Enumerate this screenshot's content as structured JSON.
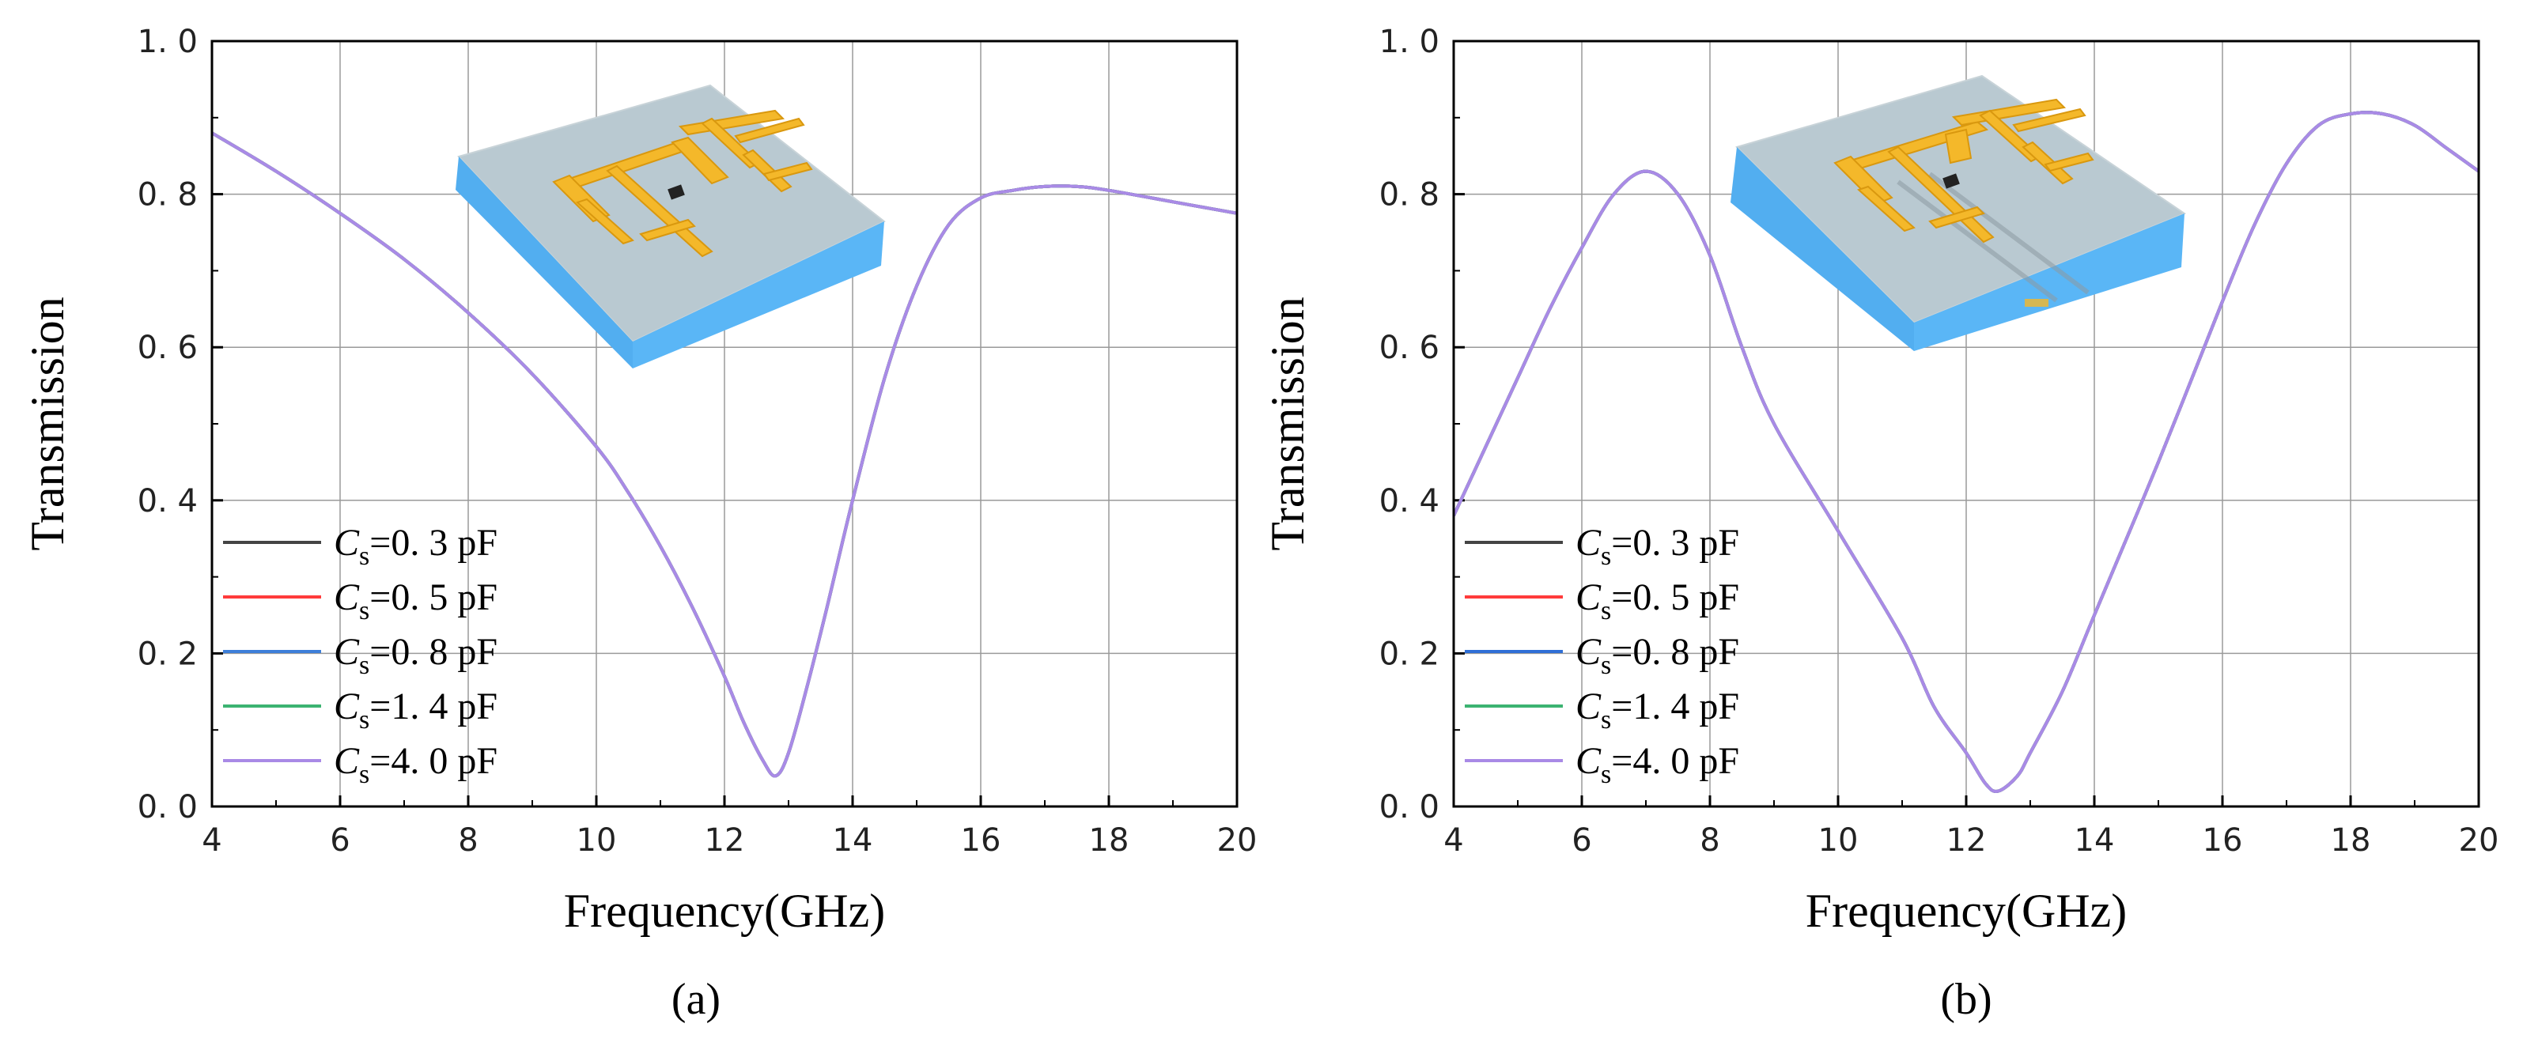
{
  "chart_data": [
    {
      "type": "line",
      "panel_label": "(a)",
      "xlabel": "Frequency(GHz)",
      "ylabel": "Transmission",
      "xlim": [
        4,
        20
      ],
      "ylim": [
        0.0,
        1.0
      ],
      "xticks": [
        "4",
        "6",
        "8",
        "10",
        "12",
        "14",
        "16",
        "18",
        "20"
      ],
      "yticks": [
        "0. 0",
        "0. 2",
        "0. 4",
        "0. 6",
        "0. 8",
        "1. 0"
      ],
      "grid": true,
      "legend_position": "lower-left",
      "legend": [
        {
          "prefix": "C",
          "sub": "s",
          "suffix": "=0. 3  pF",
          "color": "#444444"
        },
        {
          "prefix": "C",
          "sub": "s",
          "suffix": "=0. 5  pF",
          "color": "#ff3b3b"
        },
        {
          "prefix": "C",
          "sub": "s",
          "suffix": "=0. 8  pF",
          "color": "#3d7fd9"
        },
        {
          "prefix": "C",
          "sub": "s",
          "suffix": "=1. 4  pF",
          "color": "#3cb371"
        },
        {
          "prefix": "C",
          "sub": "s",
          "suffix": "=4. 0  pF",
          "color": "#a98ae6"
        }
      ],
      "curve_color": "#a98ae6",
      "x": [
        4,
        5,
        6,
        7,
        8,
        9,
        10,
        10.5,
        11,
        11.5,
        12,
        12.3,
        12.6,
        12.8,
        13,
        13.3,
        13.6,
        14,
        14.5,
        15,
        15.5,
        16,
        16.5,
        17,
        17.5,
        18,
        19,
        20
      ],
      "y": [
        0.88,
        0.83,
        0.775,
        0.715,
        0.645,
        0.565,
        0.47,
        0.41,
        0.34,
        0.26,
        0.17,
        0.11,
        0.06,
        0.04,
        0.07,
        0.16,
        0.26,
        0.4,
        0.56,
        0.68,
        0.76,
        0.795,
        0.805,
        0.81,
        0.81,
        0.805,
        0.79,
        0.775
      ]
    },
    {
      "type": "line",
      "panel_label": "(b)",
      "xlabel": "Frequency(GHz)",
      "ylabel": "Transmission",
      "xlim": [
        4,
        20
      ],
      "ylim": [
        0.0,
        1.0
      ],
      "xticks": [
        "4",
        "6",
        "8",
        "10",
        "12",
        "14",
        "16",
        "18",
        "20"
      ],
      "yticks": [
        "0. 0",
        "0. 2",
        "0. 4",
        "0. 6",
        "0. 8",
        "1. 0"
      ],
      "grid": true,
      "legend_position": "lower-left",
      "legend": [
        {
          "prefix": "C",
          "sub": "s",
          "suffix": "=0. 3  pF",
          "color": "#444444"
        },
        {
          "prefix": "C",
          "sub": "s",
          "suffix": "=0. 5  pF",
          "color": "#ff3b3b"
        },
        {
          "prefix": "C",
          "sub": "s",
          "suffix": "=0. 8  pF",
          "color": "#2f6fd6"
        },
        {
          "prefix": "C",
          "sub": "s",
          "suffix": "=1. 4  pF",
          "color": "#3cb371"
        },
        {
          "prefix": "C",
          "sub": "s",
          "suffix": "=4. 0  pF",
          "color": "#a98ae6"
        }
      ],
      "curve_color": "#a98ae6",
      "x": [
        4,
        4.5,
        5,
        5.5,
        6,
        6.5,
        7,
        7.5,
        8,
        8.5,
        9,
        10,
        11,
        11.5,
        12,
        12.3,
        12.5,
        12.8,
        13,
        13.5,
        14,
        15,
        16,
        16.5,
        17,
        17.5,
        18,
        18.5,
        19,
        19.5,
        20
      ],
      "y": [
        0.38,
        0.47,
        0.56,
        0.65,
        0.73,
        0.8,
        0.83,
        0.8,
        0.72,
        0.6,
        0.5,
        0.36,
        0.22,
        0.13,
        0.07,
        0.03,
        0.02,
        0.04,
        0.07,
        0.15,
        0.25,
        0.45,
        0.66,
        0.76,
        0.84,
        0.89,
        0.905,
        0.905,
        0.89,
        0.86,
        0.83
      ]
    }
  ]
}
